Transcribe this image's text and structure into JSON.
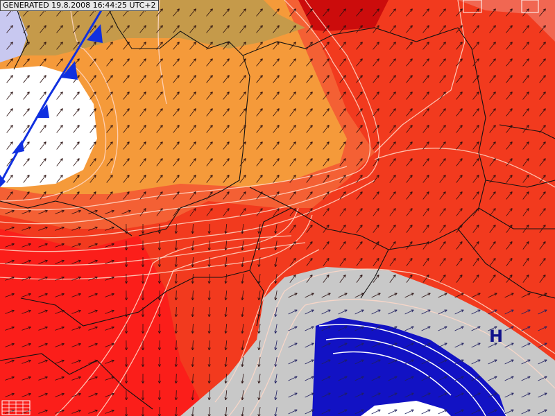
{
  "header": {
    "title": "GENERATED 19.8.2008 16:44:25 UTC+2"
  },
  "map": {
    "pressure_label": "H"
  }
}
